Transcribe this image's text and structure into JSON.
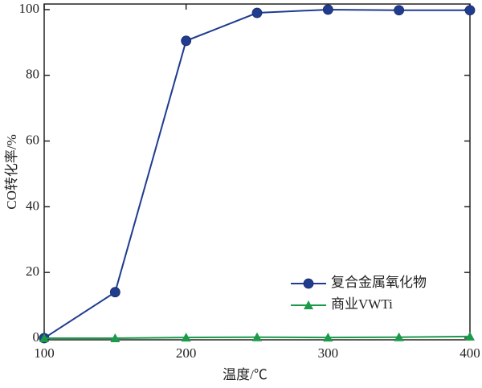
{
  "chart_data": {
    "type": "line",
    "x_label": "温度/℃",
    "y_label": "CO转化率/%",
    "x": [
      100,
      150,
      200,
      250,
      300,
      350,
      400
    ],
    "series": [
      {
        "name": "复合金属氧化物",
        "color": "#1f3c8f",
        "marker": "circle",
        "values": [
          0,
          14,
          90.5,
          99,
          100,
          99.8,
          99.8
        ]
      },
      {
        "name": "商业VWTi",
        "color": "#1b9a4a",
        "marker": "triangle",
        "values": [
          0,
          0,
          0.2,
          0.3,
          0.2,
          0.3,
          0.5
        ]
      }
    ],
    "xlim": [
      100,
      400
    ],
    "ylim": [
      -0.5,
      101.7
    ],
    "xticks": [
      100,
      200,
      300,
      400
    ],
    "yticks": [
      0,
      20,
      40,
      60,
      80,
      100
    ],
    "grid": false,
    "legend": "lower right"
  }
}
